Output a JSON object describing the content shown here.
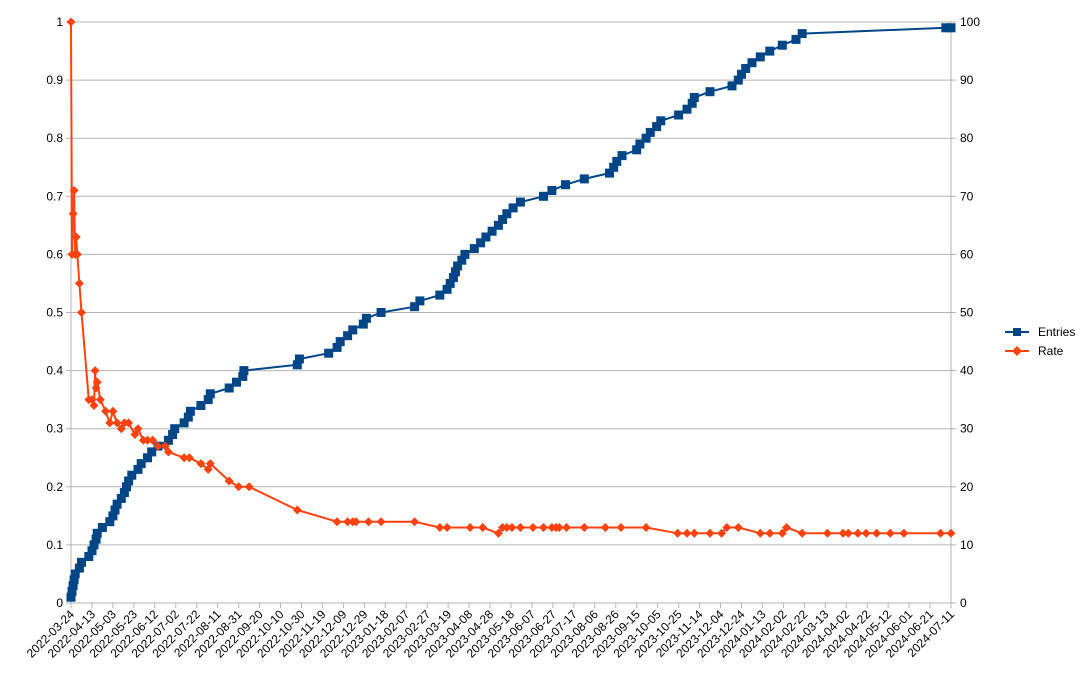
{
  "chart_data": {
    "type": "line",
    "title": "",
    "xlabel": "",
    "ylabel": "",
    "y2label": "",
    "grid": true,
    "legend_position": "right",
    "x_ticks": [
      "2022-03-24",
      "2022-04-13",
      "2022-05-03",
      "2022-05-23",
      "2022-06-12",
      "2022-07-02",
      "2022-07-22",
      "2022-08-11",
      "2022-08-31",
      "2022-09-20",
      "2022-10-10",
      "2022-10-30",
      "2022-11-19",
      "2022-12-09",
      "2022-12-29",
      "2023-01-18",
      "2023-02-07",
      "2023-02-27",
      "2023-03-19",
      "2023-04-08",
      "2023-04-28",
      "2023-05-18",
      "2023-06-07",
      "2023-06-27",
      "2023-07-17",
      "2023-08-06",
      "2023-08-26",
      "2023-09-15",
      "2023-10-05",
      "2023-10-25",
      "2023-11-14",
      "2023-12-04",
      "2023-12-24",
      "2024-01-13",
      "2024-02-02",
      "2024-02-22",
      "2024-03-13",
      "2024-04-02",
      "2024-04-22",
      "2024-05-12",
      "2024-06-01",
      "2024-06-21",
      "2024-07-11"
    ],
    "xlim": [
      "2022-03-24",
      "2024-07-11"
    ],
    "y_left": {
      "ylim": [
        0,
        1
      ],
      "ticks": [
        "0",
        "0.1",
        "0.2",
        "0.3",
        "0.4",
        "0.5",
        "0.6",
        "0.7",
        "0.8",
        "0.9",
        "1"
      ]
    },
    "y_right": {
      "ylim": [
        0,
        100
      ],
      "ticks": [
        "0",
        "10",
        "20",
        "30",
        "40",
        "50",
        "60",
        "70",
        "80",
        "90",
        "100"
      ]
    },
    "series": [
      {
        "name": "Entries",
        "axis": "right",
        "color": "#004586",
        "marker": "square",
        "points": [
          [
            "2022-03-24",
            1
          ],
          [
            "2022-03-25",
            2
          ],
          [
            "2022-03-26",
            3
          ],
          [
            "2022-03-27",
            4
          ],
          [
            "2022-03-28",
            5
          ],
          [
            "2022-04-01",
            6
          ],
          [
            "2022-04-03",
            7
          ],
          [
            "2022-04-10",
            8
          ],
          [
            "2022-04-13",
            9
          ],
          [
            "2022-04-15",
            10
          ],
          [
            "2022-04-17",
            11
          ],
          [
            "2022-04-18",
            12
          ],
          [
            "2022-04-23",
            13
          ],
          [
            "2022-04-30",
            14
          ],
          [
            "2022-05-03",
            15
          ],
          [
            "2022-05-05",
            16
          ],
          [
            "2022-05-07",
            17
          ],
          [
            "2022-05-11",
            18
          ],
          [
            "2022-05-14",
            19
          ],
          [
            "2022-05-16",
            20
          ],
          [
            "2022-05-18",
            21
          ],
          [
            "2022-05-21",
            22
          ],
          [
            "2022-05-27",
            23
          ],
          [
            "2022-05-30",
            24
          ],
          [
            "2022-06-05",
            25
          ],
          [
            "2022-06-09",
            26
          ],
          [
            "2022-06-15",
            27
          ],
          [
            "2022-06-25",
            28
          ],
          [
            "2022-06-29",
            29
          ],
          [
            "2022-07-01",
            30
          ],
          [
            "2022-07-10",
            31
          ],
          [
            "2022-07-14",
            32
          ],
          [
            "2022-07-16",
            33
          ],
          [
            "2022-07-26",
            34
          ],
          [
            "2022-08-02",
            35
          ],
          [
            "2022-08-04",
            36
          ],
          [
            "2022-08-22",
            37
          ],
          [
            "2022-08-29",
            38
          ],
          [
            "2022-09-04",
            39
          ],
          [
            "2022-09-05",
            40
          ],
          [
            "2022-10-26",
            41
          ],
          [
            "2022-10-28",
            42
          ],
          [
            "2022-11-25",
            43
          ],
          [
            "2022-12-03",
            44
          ],
          [
            "2022-12-06",
            45
          ],
          [
            "2022-12-13",
            46
          ],
          [
            "2022-12-18",
            47
          ],
          [
            "2022-12-28",
            48
          ],
          [
            "2022-12-31",
            49
          ],
          [
            "2023-01-14",
            50
          ],
          [
            "2023-02-15",
            51
          ],
          [
            "2023-02-20",
            52
          ],
          [
            "2023-03-11",
            53
          ],
          [
            "2023-03-18",
            54
          ],
          [
            "2023-03-21",
            55
          ],
          [
            "2023-03-24",
            56
          ],
          [
            "2023-03-26",
            57
          ],
          [
            "2023-03-28",
            58
          ],
          [
            "2023-04-01",
            59
          ],
          [
            "2023-04-04",
            60
          ],
          [
            "2023-04-13",
            61
          ],
          [
            "2023-04-19",
            62
          ],
          [
            "2023-04-24",
            63
          ],
          [
            "2023-04-30",
            64
          ],
          [
            "2023-05-06",
            65
          ],
          [
            "2023-05-10",
            66
          ],
          [
            "2023-05-14",
            67
          ],
          [
            "2023-05-20",
            68
          ],
          [
            "2023-05-27",
            69
          ],
          [
            "2023-06-18",
            70
          ],
          [
            "2023-06-26",
            71
          ],
          [
            "2023-07-09",
            72
          ],
          [
            "2023-07-27",
            73
          ],
          [
            "2023-08-20",
            74
          ],
          [
            "2023-08-24",
            75
          ],
          [
            "2023-08-27",
            76
          ],
          [
            "2023-09-01",
            77
          ],
          [
            "2023-09-15",
            78
          ],
          [
            "2023-09-18",
            79
          ],
          [
            "2023-09-24",
            80
          ],
          [
            "2023-09-28",
            81
          ],
          [
            "2023-10-04",
            82
          ],
          [
            "2023-10-08",
            83
          ],
          [
            "2023-10-25",
            84
          ],
          [
            "2023-11-02",
            85
          ],
          [
            "2023-11-07",
            86
          ],
          [
            "2023-11-09",
            87
          ],
          [
            "2023-11-24",
            88
          ],
          [
            "2023-12-15",
            89
          ],
          [
            "2023-12-21",
            90
          ],
          [
            "2023-12-24",
            91
          ],
          [
            "2023-12-28",
            92
          ],
          [
            "2024-01-03",
            93
          ],
          [
            "2024-01-11",
            94
          ],
          [
            "2024-01-20",
            95
          ],
          [
            "2024-02-01",
            96
          ],
          [
            "2024-02-14",
            97
          ],
          [
            "2024-02-20",
            98
          ],
          [
            "2024-07-06",
            99
          ],
          [
            "2024-07-11",
            99
          ]
        ]
      },
      {
        "name": "Rate",
        "axis": "left",
        "color": "#ff420e",
        "marker": "diamond",
        "points": [
          [
            "2022-03-24",
            1.0
          ],
          [
            "2022-03-25",
            0.6
          ],
          [
            "2022-03-26",
            0.67
          ],
          [
            "2022-03-27",
            0.71
          ],
          [
            "2022-03-28",
            0.6
          ],
          [
            "2022-03-29",
            0.63
          ],
          [
            "2022-03-30",
            0.6
          ],
          [
            "2022-04-01",
            0.55
          ],
          [
            "2022-04-03",
            0.5
          ],
          [
            "2022-04-10",
            0.35
          ],
          [
            "2022-04-13",
            0.35
          ],
          [
            "2022-04-15",
            0.34
          ],
          [
            "2022-04-16",
            0.4
          ],
          [
            "2022-04-17",
            0.37
          ],
          [
            "2022-04-18",
            0.38
          ],
          [
            "2022-04-21",
            0.35
          ],
          [
            "2022-04-26",
            0.33
          ],
          [
            "2022-04-30",
            0.31
          ],
          [
            "2022-05-03",
            0.33
          ],
          [
            "2022-05-07",
            0.31
          ],
          [
            "2022-05-11",
            0.3
          ],
          [
            "2022-05-14",
            0.31
          ],
          [
            "2022-05-18",
            0.31
          ],
          [
            "2022-05-24",
            0.29
          ],
          [
            "2022-05-27",
            0.3
          ],
          [
            "2022-06-01",
            0.28
          ],
          [
            "2022-06-05",
            0.28
          ],
          [
            "2022-06-10",
            0.28
          ],
          [
            "2022-06-15",
            0.27
          ],
          [
            "2022-06-22",
            0.27
          ],
          [
            "2022-06-25",
            0.26
          ],
          [
            "2022-07-10",
            0.25
          ],
          [
            "2022-07-15",
            0.25
          ],
          [
            "2022-07-26",
            0.24
          ],
          [
            "2022-08-02",
            0.23
          ],
          [
            "2022-08-04",
            0.24
          ],
          [
            "2022-08-22",
            0.21
          ],
          [
            "2022-08-31",
            0.2
          ],
          [
            "2022-09-10",
            0.2
          ],
          [
            "2022-10-26",
            0.16
          ],
          [
            "2022-12-03",
            0.14
          ],
          [
            "2022-12-13",
            0.14
          ],
          [
            "2022-12-18",
            0.14
          ],
          [
            "2022-12-21",
            0.14
          ],
          [
            "2023-01-02",
            0.14
          ],
          [
            "2023-01-14",
            0.14
          ],
          [
            "2023-02-15",
            0.14
          ],
          [
            "2023-03-11",
            0.13
          ],
          [
            "2023-03-18",
            0.13
          ],
          [
            "2023-04-09",
            0.13
          ],
          [
            "2023-04-21",
            0.13
          ],
          [
            "2023-05-06",
            0.12
          ],
          [
            "2023-05-10",
            0.13
          ],
          [
            "2023-05-14",
            0.13
          ],
          [
            "2023-05-19",
            0.13
          ],
          [
            "2023-05-27",
            0.13
          ],
          [
            "2023-06-08",
            0.13
          ],
          [
            "2023-06-18",
            0.13
          ],
          [
            "2023-06-26",
            0.13
          ],
          [
            "2023-06-30",
            0.13
          ],
          [
            "2023-07-03",
            0.13
          ],
          [
            "2023-07-10",
            0.13
          ],
          [
            "2023-07-27",
            0.13
          ],
          [
            "2023-08-16",
            0.13
          ],
          [
            "2023-08-31",
            0.13
          ],
          [
            "2023-09-24",
            0.13
          ],
          [
            "2023-10-24",
            0.12
          ],
          [
            "2023-11-02",
            0.12
          ],
          [
            "2023-11-09",
            0.12
          ],
          [
            "2023-11-24",
            0.12
          ],
          [
            "2023-12-05",
            0.12
          ],
          [
            "2023-12-10",
            0.13
          ],
          [
            "2023-12-21",
            0.13
          ],
          [
            "2024-01-11",
            0.12
          ],
          [
            "2024-01-20",
            0.12
          ],
          [
            "2024-02-01",
            0.12
          ],
          [
            "2024-02-05",
            0.13
          ],
          [
            "2024-02-20",
            0.12
          ],
          [
            "2024-03-15",
            0.12
          ],
          [
            "2024-03-30",
            0.12
          ],
          [
            "2024-04-04",
            0.12
          ],
          [
            "2024-04-13",
            0.12
          ],
          [
            "2024-04-21",
            0.12
          ],
          [
            "2024-05-01",
            0.12
          ],
          [
            "2024-05-14",
            0.12
          ],
          [
            "2024-05-27",
            0.12
          ],
          [
            "2024-07-01",
            0.12
          ],
          [
            "2024-07-11",
            0.12
          ]
        ]
      }
    ]
  }
}
